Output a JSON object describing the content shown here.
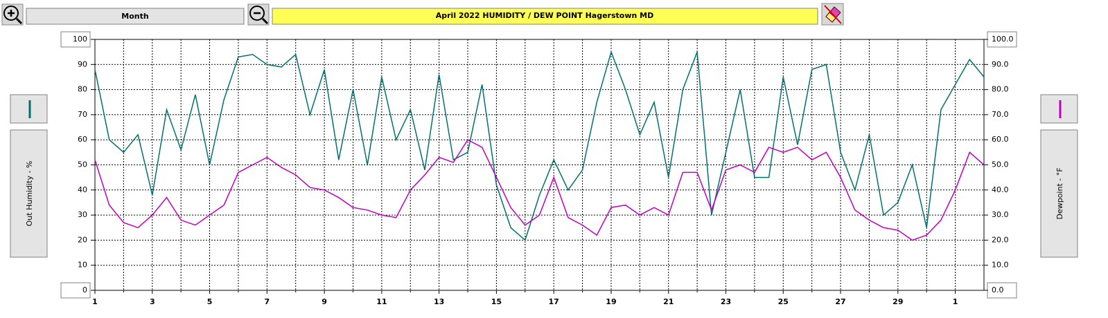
{
  "ui": {
    "period": "Month"
  },
  "chart_data": {
    "type": "line",
    "title": "April  2022   HUMIDITY / DEW POINT  Hagerstown MD",
    "ylabel": "Out Humidity - %",
    "y2label": "Dewpoint - °F",
    "x": [
      0,
      0.5,
      1,
      1.5,
      2,
      2.5,
      3,
      3.5,
      4,
      4.5,
      5,
      5.5,
      6,
      6.5,
      7,
      7.5,
      8,
      8.5,
      9,
      9.5,
      10,
      10.5,
      11,
      11.5,
      12,
      12.5,
      13,
      13.5,
      14,
      14.5,
      15,
      15.5,
      16,
      16.5,
      17,
      17.5,
      18,
      18.5,
      19,
      19.5,
      20,
      20.5,
      21,
      21.5,
      22,
      22.5,
      23,
      23.5,
      24,
      24.5,
      25,
      25.5,
      26,
      26.5,
      27,
      27.5,
      28,
      28.5,
      29,
      29.5,
      30,
      30.5,
      31
    ],
    "series": [
      {
        "name": "Out Humidity",
        "color": "#007070",
        "axis": "y",
        "values": [
          88,
          60,
          55,
          62,
          38,
          72,
          56,
          78,
          50,
          76,
          93,
          94,
          90,
          89,
          94,
          70,
          88,
          52,
          80,
          50,
          85,
          60,
          72,
          48,
          86,
          52,
          55,
          82,
          42,
          25,
          20,
          38,
          52,
          40,
          48,
          75,
          95,
          80,
          62,
          75,
          45,
          80,
          95,
          30,
          55,
          80,
          45,
          45,
          85,
          58,
          88,
          90,
          55,
          40,
          62,
          30,
          35,
          50,
          25,
          72,
          82,
          92,
          85
        ]
      },
      {
        "name": "Dewpoint",
        "color": "#c000c0",
        "axis": "y2",
        "values": [
          52,
          34,
          27,
          25,
          30,
          37,
          28,
          26,
          30,
          34,
          47,
          50,
          53,
          49,
          46,
          41,
          40,
          37,
          33,
          32,
          30,
          29,
          40,
          46,
          53,
          51,
          60,
          57,
          45,
          33,
          26,
          30,
          45,
          29,
          26,
          22,
          33,
          34,
          30,
          33,
          30,
          47,
          47,
          32,
          48,
          50,
          47,
          57,
          55,
          57,
          52,
          55,
          45,
          32,
          28,
          25,
          24,
          20,
          22,
          28,
          40,
          55,
          50
        ]
      }
    ],
    "xlim": [
      0,
      31
    ],
    "xticks": [
      {
        "value": 0,
        "label": "1"
      },
      {
        "value": 2,
        "label": "3"
      },
      {
        "value": 4,
        "label": "5"
      },
      {
        "value": 6,
        "label": "7"
      },
      {
        "value": 8,
        "label": "9"
      },
      {
        "value": 10,
        "label": "11"
      },
      {
        "value": 12,
        "label": "13"
      },
      {
        "value": 14,
        "label": "15"
      },
      {
        "value": 16,
        "label": "17"
      },
      {
        "value": 18,
        "label": "19"
      },
      {
        "value": 20,
        "label": "21"
      },
      {
        "value": 22,
        "label": "23"
      },
      {
        "value": 24,
        "label": "25"
      },
      {
        "value": 26,
        "label": "27"
      },
      {
        "value": 28,
        "label": "29"
      },
      {
        "value": 30,
        "label": "1"
      }
    ],
    "xgrid_minor": [
      1,
      3,
      5,
      7,
      9,
      11,
      13,
      15,
      17,
      19,
      21,
      23,
      25,
      27,
      29
    ],
    "ylim": [
      0,
      100
    ],
    "yticks": [
      0,
      10,
      20,
      30,
      40,
      50,
      60,
      70,
      80,
      90,
      100
    ],
    "y2lim": [
      0,
      100
    ],
    "y2ticks": [
      {
        "value": 0,
        "label": "0.0"
      },
      {
        "value": 10,
        "label": "10.0"
      },
      {
        "value": 20,
        "label": "20.0"
      },
      {
        "value": 30,
        "label": "30.0"
      },
      {
        "value": 40,
        "label": "40.0"
      },
      {
        "value": 50,
        "label": "50.0"
      },
      {
        "value": 60,
        "label": "60.0"
      },
      {
        "value": 70,
        "label": "70.0"
      },
      {
        "value": 80,
        "label": "80.0"
      },
      {
        "value": 90,
        "label": "90.0"
      },
      {
        "value": 100,
        "label": "100.0"
      }
    ],
    "grid": true
  }
}
